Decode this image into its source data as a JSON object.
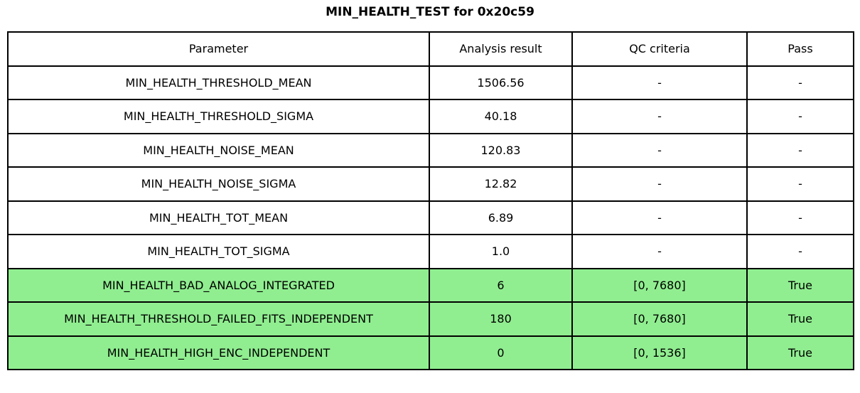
{
  "title": "MIN_HEALTH_TEST for 0x20c59",
  "colors": {
    "pass_green": "#90EE90",
    "border": "#000000",
    "background": "#FFFFFF"
  },
  "table": {
    "columns": [
      "Parameter",
      "Analysis result",
      "QC criteria",
      "Pass"
    ],
    "rows": [
      {
        "parameter": "MIN_HEALTH_THRESHOLD_MEAN",
        "result": "1506.56",
        "qc": "-",
        "pass": "-",
        "highlight": false
      },
      {
        "parameter": "MIN_HEALTH_THRESHOLD_SIGMA",
        "result": "40.18",
        "qc": "-",
        "pass": "-",
        "highlight": false
      },
      {
        "parameter": "MIN_HEALTH_NOISE_MEAN",
        "result": "120.83",
        "qc": "-",
        "pass": "-",
        "highlight": false
      },
      {
        "parameter": "MIN_HEALTH_NOISE_SIGMA",
        "result": "12.82",
        "qc": "-",
        "pass": "-",
        "highlight": false
      },
      {
        "parameter": "MIN_HEALTH_TOT_MEAN",
        "result": "6.89",
        "qc": "-",
        "pass": "-",
        "highlight": false
      },
      {
        "parameter": "MIN_HEALTH_TOT_SIGMA",
        "result": "1.0",
        "qc": "-",
        "pass": "-",
        "highlight": false
      },
      {
        "parameter": "MIN_HEALTH_BAD_ANALOG_INTEGRATED",
        "result": "6",
        "qc": "[0, 7680]",
        "pass": "True",
        "highlight": true
      },
      {
        "parameter": "MIN_HEALTH_THRESHOLD_FAILED_FITS_INDEPENDENT",
        "result": "180",
        "qc": "[0, 7680]",
        "pass": "True",
        "highlight": true
      },
      {
        "parameter": "MIN_HEALTH_HIGH_ENC_INDEPENDENT",
        "result": "0",
        "qc": "[0, 1536]",
        "pass": "True",
        "highlight": true
      }
    ]
  }
}
